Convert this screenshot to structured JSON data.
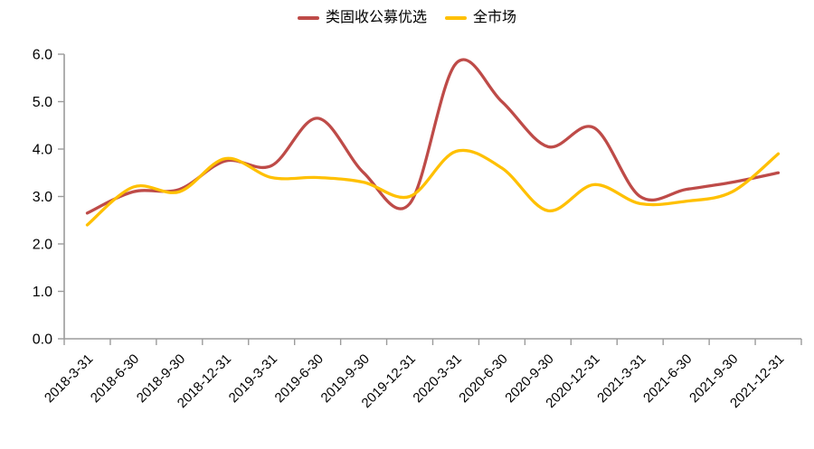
{
  "chart_data": {
    "type": "line",
    "smoothed": true,
    "title": "",
    "xlabel": "",
    "ylabel": "",
    "categories": [
      "2018-3-31",
      "2018-6-30",
      "2018-9-30",
      "2018-12-31",
      "2019-3-31",
      "2019-6-30",
      "2019-9-30",
      "2019-12-31",
      "2020-3-31",
      "2020-6-30",
      "2020-9-30",
      "2020-12-31",
      "2021-3-31",
      "2021-6-30",
      "2021-9-30",
      "2021-12-31"
    ],
    "series": [
      {
        "name": "类固收公募优选",
        "color": "#BE4B48",
        "values": [
          2.65,
          3.1,
          3.15,
          3.75,
          3.65,
          4.65,
          3.5,
          2.85,
          5.8,
          5.0,
          4.05,
          4.45,
          3.0,
          3.15,
          3.3,
          3.5
        ]
      },
      {
        "name": "全市场",
        "color": "#FFC000",
        "values": [
          2.4,
          3.2,
          3.1,
          3.8,
          3.4,
          3.4,
          3.3,
          3.0,
          3.95,
          3.6,
          2.7,
          3.25,
          2.85,
          2.9,
          3.1,
          3.9
        ]
      }
    ],
    "ylim": [
      0,
      6
    ],
    "y_ticks": [
      "0.0",
      "1.0",
      "2.0",
      "3.0",
      "4.0",
      "5.0",
      "6.0"
    ],
    "grid": false,
    "legend_position": "top-center",
    "axis_color": "#9B9B9B",
    "tick_label_color": "#000000",
    "x_tick_rotation_deg": -45
  }
}
